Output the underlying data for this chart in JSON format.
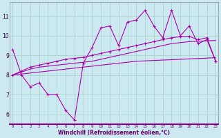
{
  "xlabel": "Windchill (Refroidissement éolien,°C)",
  "background_color": "#cce8f0",
  "grid_color": "#aad4cc",
  "line_color": "#aa00aa",
  "x": [
    0,
    1,
    2,
    3,
    4,
    5,
    6,
    7,
    8,
    9,
    10,
    11,
    12,
    13,
    14,
    15,
    16,
    17,
    18,
    19,
    20,
    21,
    22,
    23
  ],
  "series1": [
    9.3,
    8.0,
    7.4,
    7.6,
    7.0,
    7.0,
    6.2,
    5.7,
    8.6,
    9.4,
    10.4,
    10.5,
    9.5,
    10.7,
    10.8,
    11.3,
    10.5,
    9.9,
    11.3,
    10.0,
    10.5,
    9.6,
    9.8,
    8.7
  ],
  "series2": [
    8.0,
    8.05,
    8.1,
    8.15,
    8.2,
    8.25,
    8.3,
    8.35,
    8.4,
    8.45,
    8.5,
    8.55,
    8.6,
    8.65,
    8.7,
    8.72,
    8.74,
    8.76,
    8.78,
    8.8,
    8.82,
    8.84,
    8.86,
    8.88
  ],
  "series3": [
    8.0,
    8.15,
    8.3,
    8.4,
    8.45,
    8.5,
    8.55,
    8.6,
    8.65,
    8.7,
    8.8,
    8.9,
    9.0,
    9.1,
    9.2,
    9.3,
    9.4,
    9.5,
    9.6,
    9.65,
    9.7,
    9.72,
    9.74,
    9.76
  ],
  "series4": [
    8.0,
    8.2,
    8.4,
    8.5,
    8.6,
    8.7,
    8.8,
    8.85,
    8.9,
    9.0,
    9.1,
    9.2,
    9.3,
    9.4,
    9.5,
    9.6,
    9.7,
    9.8,
    9.9,
    9.95,
    9.97,
    9.8,
    9.9,
    8.7
  ],
  "ylim": [
    5.5,
    11.7
  ],
  "yticks": [
    6,
    7,
    8,
    9,
    10,
    11
  ],
  "xticks": [
    0,
    1,
    2,
    3,
    4,
    5,
    6,
    7,
    8,
    9,
    10,
    11,
    12,
    13,
    14,
    15,
    16,
    17,
    18,
    19,
    20,
    21,
    22,
    23
  ]
}
